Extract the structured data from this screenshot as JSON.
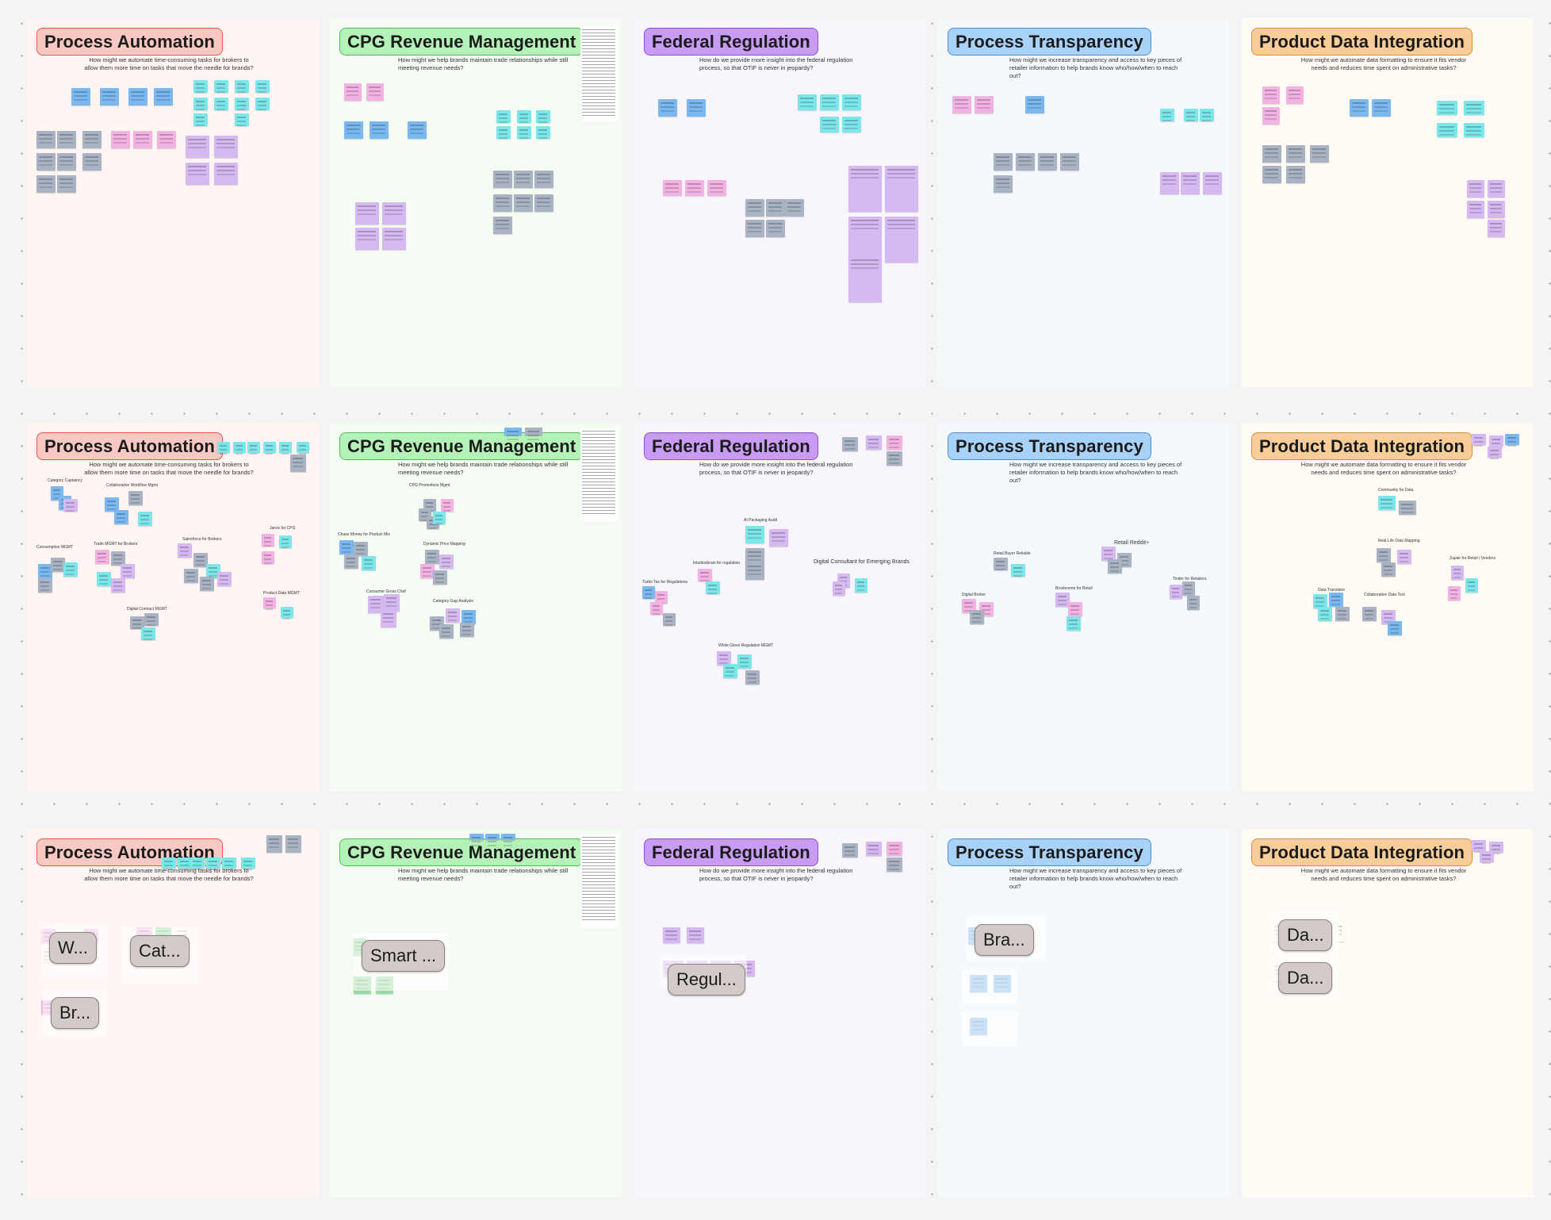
{
  "board": {
    "colors": {
      "red": "#f8c9c2",
      "green": "#b5f2b7",
      "purple": "#c89cf4",
      "blue": "#a9d2fb",
      "orange": "#f8cd98",
      "sticky_blue": "#7ab8ef",
      "sticky_cyan": "#7ce6ea",
      "sticky_gray": "#aab3c3",
      "sticky_pink": "#f2b3e3",
      "sticky_purple": "#d6b9f0",
      "sticky_green": "#98dba4"
    },
    "themes": [
      {
        "title": "Process Automation",
        "question": "How might we automate time-consuming tasks for brokers to allow them more time on tasks that move the needle for brands?",
        "color": "red"
      },
      {
        "title": "CPG Revenue Management",
        "question": "How might we help brands maintain trade relationships while still meeting revenue needs?",
        "color": "green"
      },
      {
        "title": "Federal Regulation",
        "question": "How do we provide more insight into the federal regulation process, so that OTIF is never in jeopardy?",
        "color": "purple"
      },
      {
        "title": "Process Transparency",
        "question": "How might we increase transparency and access to key pieces of retailer information to help brands know who/how/when to reach out?",
        "color": "blue"
      },
      {
        "title": "Product Data Integration",
        "question": "How might we automate data formatting to ensure it fits vendor needs and reduces time spent on administrative tasks?",
        "color": "orange"
      }
    ],
    "row2_labels": [
      [
        "Category Captaincy",
        "Collaborative Workflow Mgmt",
        "Consumption MGMT",
        "Trade MGMT for Brokers",
        "Salesforce for Brokers",
        "Jarvis for CPG",
        "Digital Contract MGMT",
        "Product Data MGMT"
      ],
      [
        "CPG Promotions Mgmt",
        "Chase Money for Product Mix",
        "Dynamic Price Mapping",
        "Consumer Gross Chef",
        "Category Gap Analysis"
      ],
      [
        "AI Packaging Audit",
        "Intuitionbrain for regulation",
        "Digital Consultant for Emerging Brands",
        "Turbo Tax for Regulations",
        "White Glove Regulation MGMT"
      ],
      [
        "Retail Buyer Reliable",
        "Retail Reddit+",
        "Digital Broker",
        "Broxboxme for Retail",
        "Tinder for Retailers"
      ],
      [
        "Community for Data",
        "Real-Life Data Mapping",
        "Zapier for Retail / Vendors",
        "Data Translator",
        "Collaborative Data Tool"
      ]
    ],
    "row3_clusters": [
      [
        "W...",
        "Cat...",
        "Br..."
      ],
      [
        "Smart ..."
      ],
      [
        "Regul..."
      ],
      [
        "Bra..."
      ],
      [
        "Da...",
        "Da..."
      ]
    ]
  }
}
